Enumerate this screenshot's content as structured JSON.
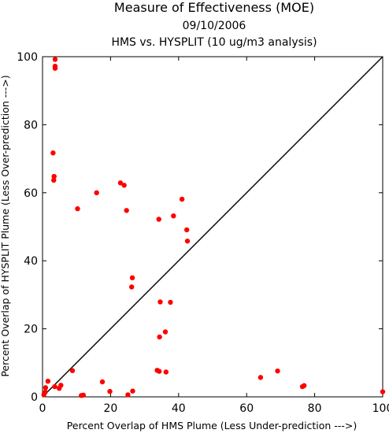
{
  "chart_data": {
    "type": "scatter",
    "title": "Measure of Effectiveness (MOE)",
    "subtitle_lines": [
      "09/10/2006",
      "HMS vs. HYSPLIT  (10 ug/m3 analysis)"
    ],
    "xlabel": "Percent Overlap of HMS Plume (Less Under-prediction --->)",
    "ylabel": "Percent Overlap of HYSPLIT Plume (Less Over-prediction --->)",
    "xlim": [
      0,
      100
    ],
    "ylim": [
      0,
      100
    ],
    "x_ticks": [
      0,
      20,
      40,
      60,
      80,
      100
    ],
    "y_ticks": [
      0,
      20,
      40,
      60,
      80,
      100
    ],
    "grid": false,
    "reference_line": {
      "from": [
        0,
        0
      ],
      "to": [
        100,
        100
      ],
      "color": "#000000"
    },
    "marker_color": "#ff0000",
    "series": [
      {
        "points": [
          [
            3.7,
            99.2
          ],
          [
            3.7,
            97.2
          ],
          [
            3.7,
            96.6
          ],
          [
            3.1,
            71.7
          ],
          [
            3.4,
            64.8
          ],
          [
            3.3,
            63.7
          ],
          [
            22.9,
            62.9
          ],
          [
            24.0,
            62.2
          ],
          [
            15.9,
            60.0
          ],
          [
            41.0,
            58.1
          ],
          [
            10.3,
            55.3
          ],
          [
            24.7,
            54.8
          ],
          [
            38.5,
            53.2
          ],
          [
            34.2,
            52.2
          ],
          [
            42.4,
            49.1
          ],
          [
            42.6,
            45.8
          ],
          [
            26.4,
            35.0
          ],
          [
            26.2,
            32.3
          ],
          [
            34.6,
            27.9
          ],
          [
            37.6,
            27.8
          ],
          [
            36.1,
            19.1
          ],
          [
            34.4,
            17.6
          ],
          [
            8.8,
            7.7
          ],
          [
            33.7,
            7.8
          ],
          [
            34.3,
            7.5
          ],
          [
            36.3,
            7.3
          ],
          [
            69.1,
            7.6
          ],
          [
            64.1,
            5.7
          ],
          [
            1.6,
            4.6
          ],
          [
            17.6,
            4.4
          ],
          [
            5.4,
            3.4
          ],
          [
            4.9,
            2.5
          ],
          [
            3.6,
            3.0
          ],
          [
            76.4,
            3.0
          ],
          [
            76.9,
            3.3
          ],
          [
            0.9,
            2.7
          ],
          [
            0.8,
            1.4
          ],
          [
            0.4,
            0.6
          ],
          [
            19.8,
            1.6
          ],
          [
            26.5,
            1.7
          ],
          [
            100.0,
            1.5
          ],
          [
            11.4,
            0.4
          ],
          [
            12.0,
            0.5
          ],
          [
            25.1,
            0.6
          ]
        ]
      }
    ]
  }
}
